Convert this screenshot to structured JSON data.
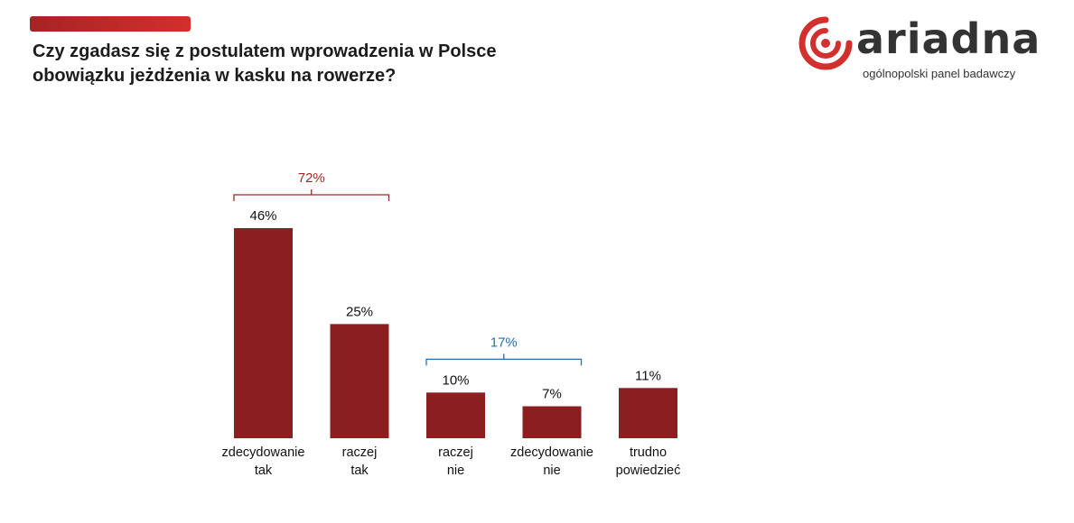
{
  "header": {
    "title_line1": "Czy zgadasz się z postulatem wprowadzenia w Polsce",
    "title_line2": "obowiązku jeżdżenia w kasku na rowerze?"
  },
  "logo": {
    "name": "ariadna",
    "tagline": "ogólnopolski panel badawczy"
  },
  "colors": {
    "bar": "#8b1f1f",
    "positive_group": "#9b2a25",
    "negative_group": "#2a6db3",
    "brand": "#d2302c"
  },
  "chart_data": {
    "type": "bar",
    "categories": [
      [
        "zdecydowanie",
        "tak"
      ],
      [
        "raczej",
        "tak"
      ],
      [
        "raczej",
        "nie"
      ],
      [
        "zdecydowanie",
        "nie"
      ],
      [
        "trudno",
        "powiedzieć"
      ]
    ],
    "values": [
      46,
      25,
      10,
      7,
      11
    ],
    "value_labels": [
      "46%",
      "25%",
      "10%",
      "7%",
      "11%"
    ],
    "groups": [
      {
        "label": "72%",
        "from": 0,
        "to": 1,
        "color": "positive"
      },
      {
        "label": "17%",
        "from": 2,
        "to": 3,
        "color": "negative"
      }
    ],
    "ylim": [
      0,
      46
    ],
    "grid": false
  }
}
